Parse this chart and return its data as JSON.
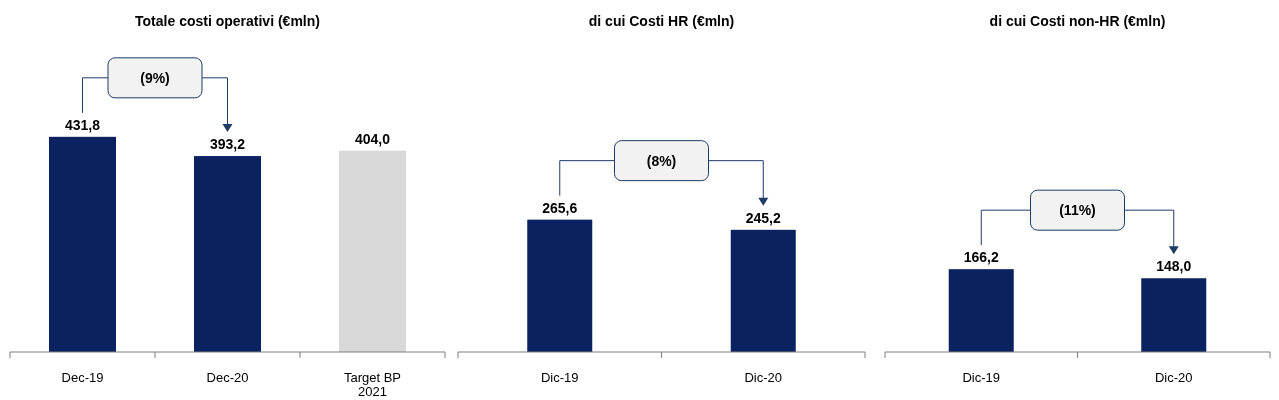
{
  "chart_data": [
    {
      "type": "bar",
      "title": "Totale costi operativi (€mln)",
      "categories": [
        "Dec-19",
        "Dec-20",
        "Target BP 2021"
      ],
      "values": [
        431.8,
        393.2,
        404.0
      ],
      "colors": [
        "#0b2260",
        "#0b2260",
        "#d9d9d9"
      ],
      "value_labels": [
        "431,8",
        "393,2",
        "404,0"
      ],
      "annotations": [
        "(9%)"
      ]
    },
    {
      "type": "bar",
      "title": "di cui Costi  HR (€mln)",
      "categories": [
        "Dic-19",
        "Dic-20"
      ],
      "values": [
        265.6,
        245.2
      ],
      "colors": [
        "#0b2260",
        "#0b2260"
      ],
      "value_labels": [
        "265,6",
        "245,2"
      ],
      "annotations": [
        "(8%)"
      ]
    },
    {
      "type": "bar",
      "title": "di cui Costi  non-HR (€mln)",
      "categories": [
        "Dic-19",
        "Dic-20"
      ],
      "values": [
        166.2,
        148.0
      ],
      "colors": [
        "#0b2260",
        "#0b2260"
      ],
      "value_labels": [
        "166,2",
        "148,0"
      ],
      "annotations": [
        "(11%)"
      ]
    }
  ]
}
